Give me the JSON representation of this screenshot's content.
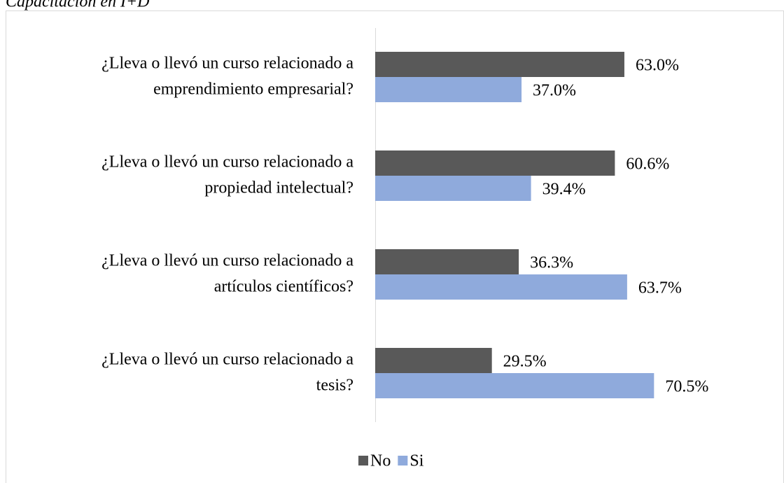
{
  "chart_data": {
    "type": "bar",
    "orientation": "horizontal",
    "title": "Capacitación en I+D",
    "categories": [
      [
        "¿Lleva o llevó un curso relacionado a",
        "emprendimiento empresarial?"
      ],
      [
        "¿Lleva o llevó un curso relacionado a",
        "propiedad intelectual?"
      ],
      [
        "¿Lleva o llevó un curso relacionado a",
        "artículos científicos?"
      ],
      [
        "¿Lleva o llevó un curso relacionado a",
        "tesis?"
      ]
    ],
    "series": [
      {
        "name": "No",
        "color": "#595959",
        "values": [
          63.0,
          60.6,
          36.3,
          29.5
        ],
        "value_labels": [
          "63.0%",
          "60.6%",
          "36.3%",
          "29.5%"
        ]
      },
      {
        "name": "Si",
        "color": "#8faadc",
        "values": [
          37.0,
          39.4,
          63.7,
          70.5
        ],
        "value_labels": [
          "37.0%",
          "39.4%",
          "63.7%",
          "70.5%"
        ]
      }
    ],
    "xlim": [
      0,
      100
    ],
    "legend": "bottom"
  }
}
